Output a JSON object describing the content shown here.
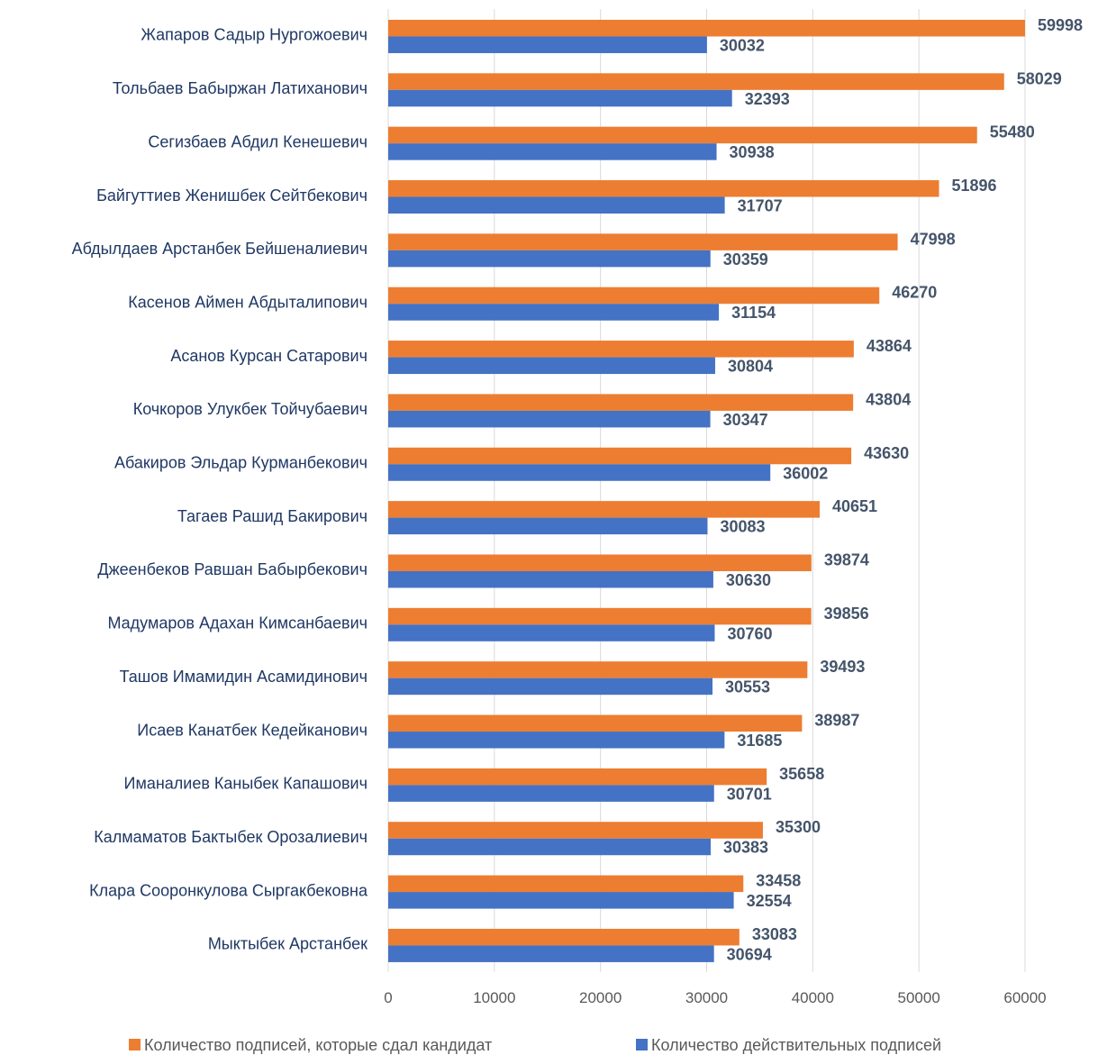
{
  "chart_data": {
    "type": "bar",
    "orientation": "horizontal",
    "categories": [
      "Жапаров Садыр Нургожоевич",
      "Тольбаев Бабыржан Латиханович",
      "Сегизбаев Абдил Кенешевич",
      "Байгуттиев Женишбек Сейтбекович",
      "Абдылдаев Арстанбек Бейшеналиевич",
      "Касенов Аймен Абдыталипович",
      "Асанов Курсан Сатарович",
      "Кочкоров Улукбек Тойчубаевич",
      "Абакиров Эльдар Курманбекович",
      "Тагаев Рашид Бакирович",
      "Джеенбеков Равшан Бабырбекович",
      "Мадумаров Адахан Кимсанбаевич",
      "Ташов Имамидин Асамидинович",
      "Исаев Канатбек Кедейканович",
      "Иманалиев Каныбек Капашович",
      "Калмаматов Бактыбек Орозалиевич",
      "Клара Сооронкулова Сыргакбековна",
      "Мыктыбек Арстанбек"
    ],
    "series": [
      {
        "name": "Количество подписей, которые сдал кандидат",
        "color": "#ed7d31",
        "values": [
          59998,
          58029,
          55480,
          51896,
          47998,
          46270,
          43864,
          43804,
          43630,
          40651,
          39874,
          39856,
          39493,
          38987,
          35658,
          35300,
          33458,
          33083
        ]
      },
      {
        "name": "Количество действительных подписей",
        "color": "#4472c4",
        "values": [
          30032,
          32393,
          30938,
          31707,
          30359,
          31154,
          30804,
          30347,
          36002,
          30083,
          30630,
          30760,
          30553,
          31685,
          30701,
          30383,
          32554,
          30694
        ]
      }
    ],
    "xlim": [
      0,
      60000
    ],
    "xticks": [
      0,
      10000,
      20000,
      30000,
      40000,
      50000,
      60000
    ],
    "grid": true,
    "legend": "bottom"
  }
}
